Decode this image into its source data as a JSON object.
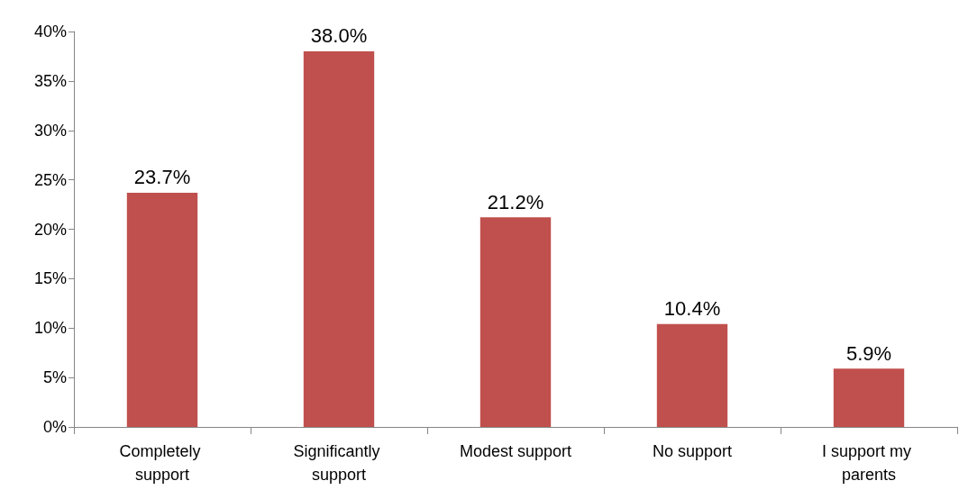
{
  "chart_data": {
    "type": "bar",
    "categories": [
      "Completely support",
      "Significantly support",
      "Modest support",
      "No support",
      "I support my parents"
    ],
    "values": [
      23.7,
      38.0,
      21.2,
      10.4,
      5.9
    ],
    "color": "#c0504d",
    "value_labels": [
      "23.7%",
      "38.0%",
      "21.2%",
      "10.4%",
      "5.9%"
    ],
    "ylim": [
      0,
      40
    ],
    "yticks": [
      {
        "value": 0,
        "label": "0%"
      },
      {
        "value": 5,
        "label": "5%"
      },
      {
        "value": 10,
        "label": "10%"
      },
      {
        "value": 15,
        "label": "15%"
      },
      {
        "value": 20,
        "label": "20%"
      },
      {
        "value": 25,
        "label": "25%"
      },
      {
        "value": 30,
        "label": "30%"
      },
      {
        "value": 35,
        "label": "35%"
      },
      {
        "value": 40,
        "label": "40%"
      }
    ],
    "grid": false
  }
}
